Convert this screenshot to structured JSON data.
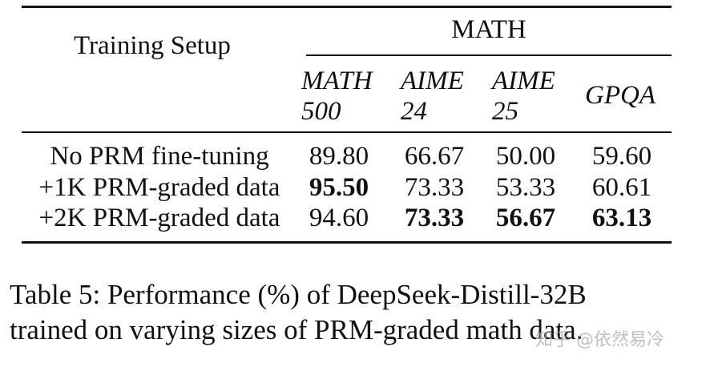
{
  "table": {
    "setup_header": "Training Setup",
    "group_header": "MATH",
    "columns": [
      {
        "line1": "MATH",
        "line2": "500"
      },
      {
        "line1": "AIME",
        "line2": "24"
      },
      {
        "line1": "AIME",
        "line2": "25"
      },
      {
        "line1": "GPQA",
        "line2": ""
      }
    ],
    "rows": [
      {
        "label": "No PRM fine-tuning",
        "values": [
          "89.80",
          "66.67",
          "50.00",
          "59.60"
        ],
        "bold": [
          false,
          false,
          false,
          false
        ]
      },
      {
        "label": "+1K PRM-graded data",
        "values": [
          "95.50",
          "73.33",
          "53.33",
          "60.61"
        ],
        "bold": [
          true,
          false,
          false,
          false
        ]
      },
      {
        "label": "+2K PRM-graded data",
        "values": [
          "94.60",
          "73.33",
          "56.67",
          "63.13"
        ],
        "bold": [
          false,
          true,
          true,
          true
        ]
      }
    ]
  },
  "caption": {
    "line1": "Table 5:  Performance (%) of DeepSeek-Distill-32B",
    "line2": "trained on varying sizes of PRM-graded math data."
  },
  "watermark": "知乎 @依然易冷"
}
